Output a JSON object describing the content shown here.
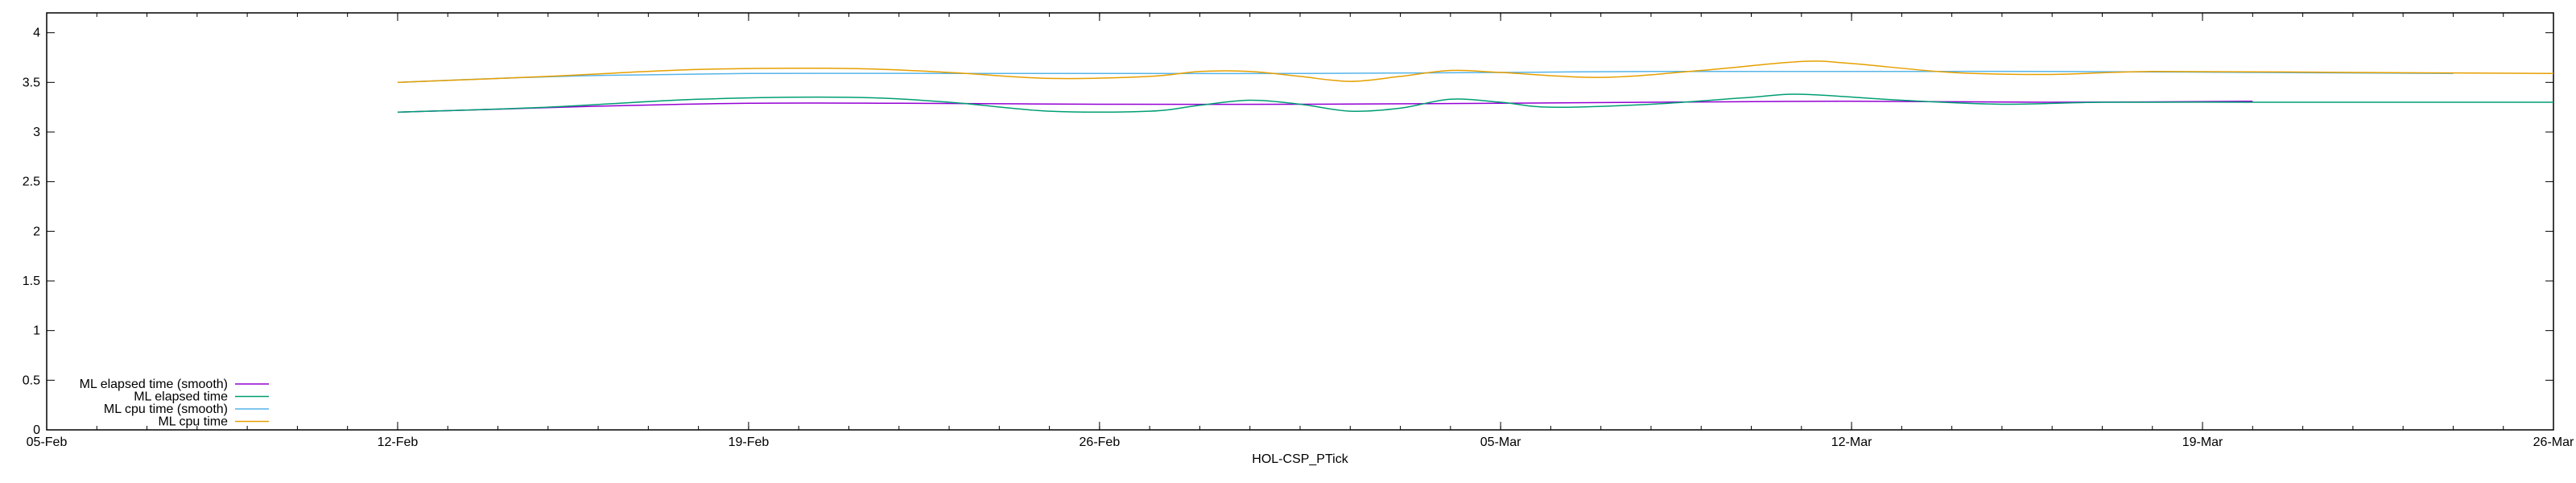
{
  "chart_data": {
    "type": "line",
    "title": "",
    "xlabel": "HOL-CSP_PTick",
    "ylabel": "",
    "x_type": "date",
    "xlim": [
      "2020-02-05",
      "2020-03-26"
    ],
    "ylim": [
      0,
      4.2
    ],
    "x_ticks": [
      {
        "date": "2020-02-05",
        "label": "05-Feb"
      },
      {
        "date": "2020-02-12",
        "label": "12-Feb"
      },
      {
        "date": "2020-02-19",
        "label": "19-Feb"
      },
      {
        "date": "2020-02-26",
        "label": "26-Feb"
      },
      {
        "date": "2020-03-05",
        "label": "05-Mar"
      },
      {
        "date": "2020-03-12",
        "label": "12-Mar"
      },
      {
        "date": "2020-03-19",
        "label": "19-Mar"
      },
      {
        "date": "2020-03-26",
        "label": "26-Mar"
      }
    ],
    "y_ticks": [
      {
        "value": 0,
        "label": "0"
      },
      {
        "value": 0.5,
        "label": "0.5"
      },
      {
        "value": 1,
        "label": "1"
      },
      {
        "value": 1.5,
        "label": "1.5"
      },
      {
        "value": 2,
        "label": "2"
      },
      {
        "value": 2.5,
        "label": "2.5"
      },
      {
        "value": 3,
        "label": "3"
      },
      {
        "value": 3.5,
        "label": "3.5"
      },
      {
        "value": 4,
        "label": "4"
      }
    ],
    "grid": false,
    "legend_position": "bottom-left",
    "series": [
      {
        "name": "ML elapsed time (smooth)",
        "color": "#9400d3",
        "points": [
          [
            "2020-02-12",
            3.2
          ],
          [
            "2020-02-14",
            3.23
          ],
          [
            "2020-02-16",
            3.26
          ],
          [
            "2020-02-19",
            3.29
          ],
          [
            "2020-02-22",
            3.29
          ],
          [
            "2020-02-26",
            3.28
          ],
          [
            "2020-03-01",
            3.28
          ],
          [
            "2020-03-05",
            3.29
          ],
          [
            "2020-03-08",
            3.3
          ],
          [
            "2020-03-12",
            3.31
          ],
          [
            "2020-03-16",
            3.3
          ],
          [
            "2020-03-20",
            3.31
          ]
        ]
      },
      {
        "name": "ML elapsed time",
        "color": "#009e73",
        "points": [
          [
            "2020-02-12",
            3.2
          ],
          [
            "2020-02-15",
            3.25
          ],
          [
            "2020-02-18",
            3.33
          ],
          [
            "2020-02-21",
            3.35
          ],
          [
            "2020-02-23",
            3.3
          ],
          [
            "2020-02-25",
            3.21
          ],
          [
            "2020-02-27",
            3.21
          ],
          [
            "2020-02-28",
            3.27
          ],
          [
            "2020-02-29",
            3.32
          ],
          [
            "2020-03-01",
            3.28
          ],
          [
            "2020-03-02",
            3.21
          ],
          [
            "2020-03-03",
            3.24
          ],
          [
            "2020-03-04",
            3.33
          ],
          [
            "2020-03-05",
            3.3
          ],
          [
            "2020-03-06",
            3.25
          ],
          [
            "2020-03-08",
            3.28
          ],
          [
            "2020-03-10",
            3.35
          ],
          [
            "2020-03-11",
            3.38
          ],
          [
            "2020-03-13",
            3.32
          ],
          [
            "2020-03-15",
            3.28
          ],
          [
            "2020-03-17",
            3.3
          ],
          [
            "2020-03-20",
            3.3
          ],
          [
            "2020-03-23",
            3.3
          ],
          [
            "2020-03-26",
            3.3
          ]
        ]
      },
      {
        "name": "ML cpu time (smooth)",
        "color": "#56b4e9",
        "points": [
          [
            "2020-02-12",
            3.5
          ],
          [
            "2020-02-14",
            3.54
          ],
          [
            "2020-02-16",
            3.57
          ],
          [
            "2020-02-19",
            3.59
          ],
          [
            "2020-02-23",
            3.59
          ],
          [
            "2020-02-26",
            3.59
          ],
          [
            "2020-03-01",
            3.59
          ],
          [
            "2020-03-05",
            3.6
          ],
          [
            "2020-03-08",
            3.61
          ],
          [
            "2020-03-12",
            3.61
          ],
          [
            "2020-03-16",
            3.61
          ],
          [
            "2020-03-20",
            3.6
          ],
          [
            "2020-03-24",
            3.59
          ]
        ]
      },
      {
        "name": "ML cpu time",
        "color": "#e69f00",
        "points": [
          [
            "2020-02-12",
            3.5
          ],
          [
            "2020-02-15",
            3.56
          ],
          [
            "2020-02-18",
            3.63
          ],
          [
            "2020-02-21",
            3.64
          ],
          [
            "2020-02-23",
            3.6
          ],
          [
            "2020-02-25",
            3.54
          ],
          [
            "2020-02-27",
            3.56
          ],
          [
            "2020-02-28",
            3.61
          ],
          [
            "2020-02-29",
            3.61
          ],
          [
            "2020-03-01",
            3.56
          ],
          [
            "2020-03-02",
            3.51
          ],
          [
            "2020-03-03",
            3.56
          ],
          [
            "2020-03-04",
            3.62
          ],
          [
            "2020-03-05",
            3.6
          ],
          [
            "2020-03-07",
            3.55
          ],
          [
            "2020-03-09",
            3.62
          ],
          [
            "2020-03-11",
            3.71
          ],
          [
            "2020-03-12",
            3.69
          ],
          [
            "2020-03-14",
            3.6
          ],
          [
            "2020-03-16",
            3.58
          ],
          [
            "2020-03-18",
            3.61
          ],
          [
            "2020-03-22",
            3.6
          ],
          [
            "2020-03-26",
            3.59
          ]
        ]
      }
    ]
  }
}
